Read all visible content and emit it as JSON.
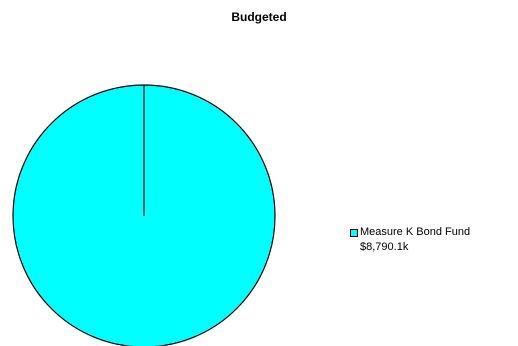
{
  "chart_data": {
    "type": "pie",
    "title": "Budgeted",
    "slices": [
      {
        "label": "Measure K Bond Fund",
        "value_label": "$8,790.1k",
        "value": 8790.1,
        "color": "#00ffff"
      }
    ],
    "legend_position": "right"
  }
}
